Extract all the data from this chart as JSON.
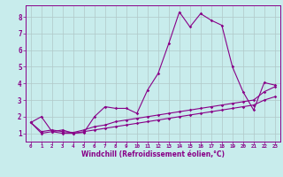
{
  "xlabel": "Windchill (Refroidissement éolien,°C)",
  "bg_color": "#c8ecec",
  "grid_color": "#b0c8c8",
  "line_color": "#880088",
  "spine_color": "#880088",
  "xlim": [
    -0.5,
    23.5
  ],
  "ylim": [
    0.5,
    8.7
  ],
  "xticks": [
    0,
    1,
    2,
    3,
    4,
    5,
    6,
    7,
    8,
    9,
    10,
    11,
    12,
    13,
    14,
    15,
    16,
    17,
    18,
    19,
    20,
    21,
    22,
    23
  ],
  "yticks": [
    1,
    2,
    3,
    4,
    5,
    6,
    7,
    8
  ],
  "line1_x": [
    0,
    1,
    2,
    3,
    4,
    5,
    6,
    7,
    8,
    9,
    10,
    11,
    12,
    13,
    14,
    15,
    16,
    17,
    18,
    19,
    20,
    21,
    22,
    23
  ],
  "line1_y": [
    1.65,
    2.0,
    1.1,
    1.2,
    1.0,
    1.05,
    2.0,
    2.6,
    2.5,
    2.5,
    2.2,
    3.6,
    4.6,
    6.4,
    8.3,
    7.4,
    8.2,
    7.8,
    7.5,
    5.0,
    3.5,
    2.4,
    4.05,
    3.9
  ],
  "line2_x": [
    0,
    1,
    2,
    3,
    4,
    5,
    6,
    7,
    8,
    9,
    10,
    11,
    12,
    13,
    14,
    15,
    16,
    17,
    18,
    19,
    20,
    21,
    22,
    23
  ],
  "line2_y": [
    1.65,
    1.1,
    1.2,
    1.1,
    1.05,
    1.2,
    1.4,
    1.5,
    1.7,
    1.8,
    1.9,
    2.0,
    2.1,
    2.2,
    2.3,
    2.4,
    2.5,
    2.6,
    2.7,
    2.8,
    2.9,
    3.0,
    3.5,
    3.8
  ],
  "line3_x": [
    0,
    1,
    2,
    3,
    4,
    5,
    6,
    7,
    8,
    9,
    10,
    11,
    12,
    13,
    14,
    15,
    16,
    17,
    18,
    19,
    20,
    21,
    22,
    23
  ],
  "line3_y": [
    1.65,
    1.0,
    1.1,
    1.0,
    1.0,
    1.1,
    1.2,
    1.3,
    1.4,
    1.5,
    1.6,
    1.7,
    1.8,
    1.9,
    2.0,
    2.1,
    2.2,
    2.3,
    2.4,
    2.5,
    2.6,
    2.7,
    3.0,
    3.2
  ],
  "xlabel_fontsize": 5.5,
  "xtick_fontsize": 4.2,
  "ytick_fontsize": 5.5,
  "marker_size": 1.8,
  "line_width": 0.8
}
